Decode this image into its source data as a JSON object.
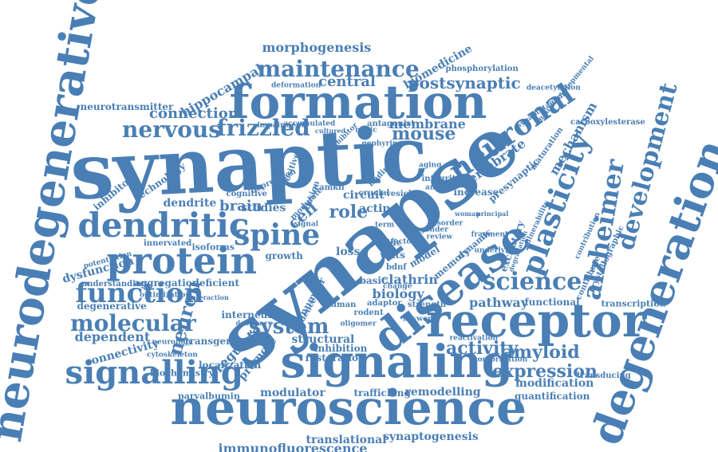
{
  "word_cloud": {
    "colors": {
      "text": "#4a7fb5",
      "background": "#ffffff"
    },
    "words": [
      {
        "id": "synaptic",
        "text": "synaptic"
      },
      {
        "id": "synapse",
        "text": "synapse"
      },
      {
        "id": "neuroscience",
        "text": "neuroscience"
      },
      {
        "id": "signaling",
        "text": "signaling"
      },
      {
        "id": "receptor",
        "text": "receptor"
      },
      {
        "id": "disease",
        "text": "disease"
      },
      {
        "id": "formation",
        "text": "formation"
      },
      {
        "id": "neurodegenerative",
        "text": "neurodegenerative"
      },
      {
        "id": "degeneration",
        "text": "degeneration"
      },
      {
        "id": "protein",
        "text": "protein"
      },
      {
        "id": "dendritic",
        "text": "dendritic"
      },
      {
        "id": "spine",
        "text": "spine"
      },
      {
        "id": "signalling",
        "text": "signalling"
      },
      {
        "id": "neuronal",
        "text": "neuronal"
      },
      {
        "id": "plasticity",
        "text": "plasticity"
      },
      {
        "id": "alzheimer",
        "text": "alzheimer"
      },
      {
        "id": "development",
        "text": "development"
      },
      {
        "id": "function",
        "text": "function"
      },
      {
        "id": "molecular",
        "text": "molecular"
      },
      {
        "id": "maintenance",
        "text": "maintenance"
      },
      {
        "id": "nervous",
        "text": "nervous"
      },
      {
        "id": "frizzled",
        "text": "frizzled"
      },
      {
        "id": "science",
        "text": "science"
      },
      {
        "id": "system",
        "text": "system"
      },
      {
        "id": "activity",
        "text": "activity"
      },
      {
        "id": "amyloid",
        "text": "amyloid"
      },
      {
        "id": "expression",
        "text": "expression"
      },
      {
        "id": "neuron",
        "text": "neuron"
      },
      {
        "id": "mouse",
        "text": "mouse"
      },
      {
        "id": "postsynaptic",
        "text": "postsynaptic"
      },
      {
        "id": "central",
        "text": "central"
      },
      {
        "id": "connection",
        "text": "connection"
      },
      {
        "id": "morphogenesis",
        "text": "morphogenesis"
      },
      {
        "id": "hippocampal",
        "text": "hippocampal"
      },
      {
        "id": "biomedicine",
        "text": "biomedicine"
      },
      {
        "id": "neurotransmitter",
        "text": "neurotransmitter"
      },
      {
        "id": "membrane",
        "text": "membrane"
      },
      {
        "id": "mechanism",
        "text": "mechanism"
      },
      {
        "id": "vertebrate",
        "text": "vertebrate"
      },
      {
        "id": "brain",
        "text": "brain"
      },
      {
        "id": "dendrite",
        "text": "dendrite"
      },
      {
        "id": "role",
        "text": "role"
      },
      {
        "id": "cell",
        "text": "cell"
      },
      {
        "id": "circuit",
        "text": "circuit"
      },
      {
        "id": "actin",
        "text": "actin"
      },
      {
        "id": "pathway",
        "text": "pathway"
      },
      {
        "id": "functional",
        "text": "functional"
      },
      {
        "id": "transcription",
        "text": "transcription"
      },
      {
        "id": "modification",
        "text": "modification"
      },
      {
        "id": "quantification",
        "text": "quantification"
      },
      {
        "id": "transducing",
        "text": "transducing"
      },
      {
        "id": "remodelling",
        "text": "remodelling"
      },
      {
        "id": "trafficking",
        "text": "trafficking"
      },
      {
        "id": "synaptogenesis",
        "text": "synaptogenesis"
      },
      {
        "id": "translational",
        "text": "translational"
      },
      {
        "id": "immunofluorescence",
        "text": "immunofluorescence"
      },
      {
        "id": "modulator",
        "text": "modulator"
      },
      {
        "id": "parvalbumin",
        "text": "parvalbumin"
      },
      {
        "id": "localization",
        "text": "localization"
      },
      {
        "id": "transgenic",
        "text": "transgenic"
      },
      {
        "id": "regulate",
        "text": "regulate"
      },
      {
        "id": "promote",
        "text": "promote"
      },
      {
        "id": "dependent",
        "text": "dependent"
      },
      {
        "id": "connectivity",
        "text": "connectivity"
      },
      {
        "id": "dysfunction",
        "text": "dysfunction"
      },
      {
        "id": "aggregation",
        "text": "aggregation"
      },
      {
        "id": "deficient",
        "text": "deficient"
      },
      {
        "id": "innervated",
        "text": "innervated"
      },
      {
        "id": "isoforms",
        "text": "isoforms"
      },
      {
        "id": "biology",
        "text": "biology"
      },
      {
        "id": "clathrin",
        "text": "clathrin"
      },
      {
        "id": "technology",
        "text": "technology"
      },
      {
        "id": "inhibitory",
        "text": "inhibitory"
      },
      {
        "id": "interneuron",
        "text": "interneuron"
      },
      {
        "id": "structural",
        "text": "structural"
      },
      {
        "id": "inhibition",
        "text": "inhibition"
      },
      {
        "id": "restoration",
        "text": "restoration"
      },
      {
        "id": "studies",
        "text": "studies"
      },
      {
        "id": "excitatory",
        "text": "excitatory"
      },
      {
        "id": "increase",
        "text": "increase"
      },
      {
        "id": "presynaptic",
        "text": "presynaptic"
      },
      {
        "id": "carboxylesterase",
        "text": "carboxylesterase"
      },
      {
        "id": "phosphorylation",
        "text": "phosphorylation"
      },
      {
        "id": "synaptotagmin",
        "text": "synaptotagmin"
      },
      {
        "id": "neurodevelopmental",
        "text": "neurodevelopmental"
      },
      {
        "id": "deacetylation",
        "text": "deacetylation"
      },
      {
        "id": "maturation",
        "text": "maturation"
      },
      {
        "id": "contribution",
        "text": "contribution"
      },
      {
        "id": "contribute",
        "text": "contribute"
      },
      {
        "id": "crystallographic",
        "text": "crystallographic"
      },
      {
        "id": "vulnerability",
        "text": "vulnerability"
      },
      {
        "id": "dynamic",
        "text": "dynamic"
      },
      {
        "id": "degenerative",
        "text": "degenerative"
      },
      {
        "id": "biochemistry",
        "text": "biochemistry"
      },
      {
        "id": "understanding",
        "text": "understanding"
      },
      {
        "id": "potentiation",
        "text": "potentiation"
      },
      {
        "id": "optimization",
        "text": "optimization"
      },
      {
        "id": "neurology",
        "text": "neurology"
      },
      {
        "id": "cytoskeleton",
        "text": "cytoskeleton"
      },
      {
        "id": "deformation",
        "text": "deformation"
      },
      {
        "id": "antagonist",
        "text": "antagonist"
      },
      {
        "id": "gephyrin",
        "text": "gephyrin"
      },
      {
        "id": "cognitive",
        "text": "cognitive"
      },
      {
        "id": "depression",
        "text": "depression"
      },
      {
        "id": "growth",
        "text": "growth"
      },
      {
        "id": "loss",
        "text": "loss"
      },
      {
        "id": "wnts",
        "text": "wnts"
      },
      {
        "id": "life",
        "text": "life"
      },
      {
        "id": "model",
        "text": "model"
      },
      {
        "id": "memory",
        "text": "memory"
      },
      {
        "id": "crucial",
        "text": "crucial"
      },
      {
        "id": "vesicle",
        "text": "vesicle"
      },
      {
        "id": "basic",
        "text": "basic"
      },
      {
        "id": "adaptor",
        "text": "adaptor"
      },
      {
        "id": "human",
        "text": "human"
      },
      {
        "id": "rodent",
        "text": "rodent"
      },
      {
        "id": "strength",
        "text": "strength"
      },
      {
        "id": "keyword",
        "text": "keyword"
      },
      {
        "id": "principal",
        "text": "principal"
      },
      {
        "id": "woman",
        "text": "woman"
      },
      {
        "id": "integrity",
        "text": "integrity"
      },
      {
        "id": "finding",
        "text": "finding"
      },
      {
        "id": "modulate",
        "text": "modulate"
      },
      {
        "id": "impairment",
        "text": "impairment"
      },
      {
        "id": "accumulated",
        "text": "accumulated"
      },
      {
        "id": "inhibitor",
        "text": "inhibitor"
      },
      {
        "id": "disorder",
        "text": "disorder"
      },
      {
        "id": "gender",
        "text": "gender"
      },
      {
        "id": "review",
        "text": "review"
      },
      {
        "id": "bdnf",
        "text": "bdnf"
      },
      {
        "id": "camkii",
        "text": "camkii"
      },
      {
        "id": "oligomer",
        "text": "oligomer"
      },
      {
        "id": "conformation",
        "text": "conformation"
      },
      {
        "id": "reactivation",
        "text": "reactivation"
      },
      {
        "id": "evidence",
        "text": "evidence"
      },
      {
        "id": "number",
        "text": "number"
      },
      {
        "id": "design",
        "text": "design"
      },
      {
        "id": "positive",
        "text": "positive"
      },
      {
        "id": "signal",
        "text": "signal"
      },
      {
        "id": "factor",
        "text": "factor"
      },
      {
        "id": "change",
        "text": "change"
      },
      {
        "id": "term",
        "text": "term"
      },
      {
        "id": "nitric",
        "text": "nitric"
      },
      {
        "id": "aging",
        "text": "aging"
      },
      {
        "id": "deficiency",
        "text": "deficiency"
      },
      {
        "id": "interaction",
        "text": "interaction"
      },
      {
        "id": "cultured",
        "text": "cultured"
      },
      {
        "id": "analysis",
        "text": "analysis"
      },
      {
        "id": "fragment",
        "text": "fragment"
      },
      {
        "id": "underlying",
        "text": "underlying"
      },
      {
        "id": "degradation",
        "text": "degradation"
      }
    ]
  }
}
